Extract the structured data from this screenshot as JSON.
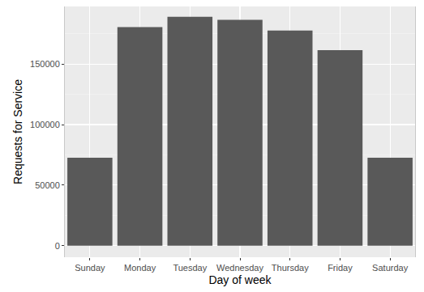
{
  "chart_data": {
    "type": "bar",
    "x_label": "Day of week",
    "y_label": "Requests for Service",
    "categories": [
      "Sunday",
      "Monday",
      "Tuesday",
      "Wednesday",
      "Thursday",
      "Friday",
      "Saturday"
    ],
    "values": [
      72600,
      180500,
      189000,
      186500,
      177700,
      161500,
      72600
    ],
    "color": "#595959",
    "ylim": [
      -9500,
      197500
    ],
    "yticks": [
      0,
      50000,
      100000,
      150000
    ],
    "grid": true
  }
}
